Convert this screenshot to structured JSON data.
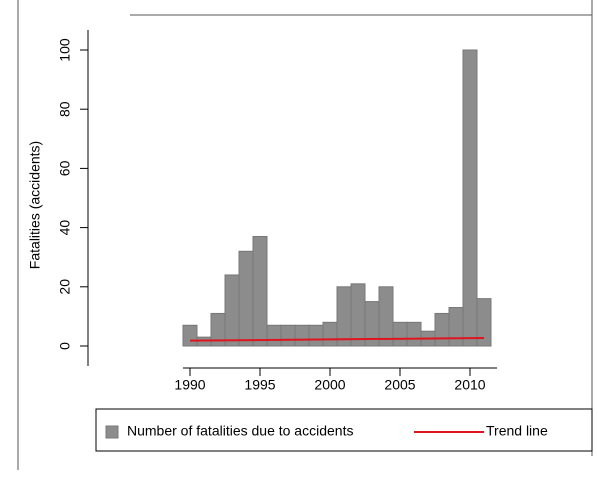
{
  "chart_data": {
    "type": "bar",
    "ylabel": "Fatalities (accidents)",
    "series": [
      {
        "name": "Number of fatalities due to accidents",
        "type": "bar",
        "color": "#8c8c8c",
        "x": [
          1990,
          1991,
          1992,
          1993,
          1994,
          1995,
          1996,
          1997,
          1998,
          1999,
          2000,
          2001,
          2002,
          2003,
          2004,
          2005,
          2006,
          2007,
          2008,
          2009,
          2010,
          2011
        ],
        "values": [
          7,
          3,
          11,
          24,
          32,
          37,
          7,
          7,
          7,
          7,
          8,
          20,
          21,
          15,
          20,
          8,
          8,
          5,
          11,
          13,
          100,
          16
        ]
      },
      {
        "name": "Trend line",
        "type": "line",
        "color": "#e0141e",
        "x": [
          1990,
          2011
        ],
        "values": [
          1.8,
          2.7
        ]
      }
    ],
    "xlim": [
      1989.5,
      2011.5
    ],
    "xticks": [
      1990,
      1995,
      2000,
      2005,
      2010
    ],
    "ylim": [
      0,
      100
    ],
    "yticks": [
      0,
      20,
      40,
      60,
      80,
      100
    ],
    "legend": "bottom"
  }
}
